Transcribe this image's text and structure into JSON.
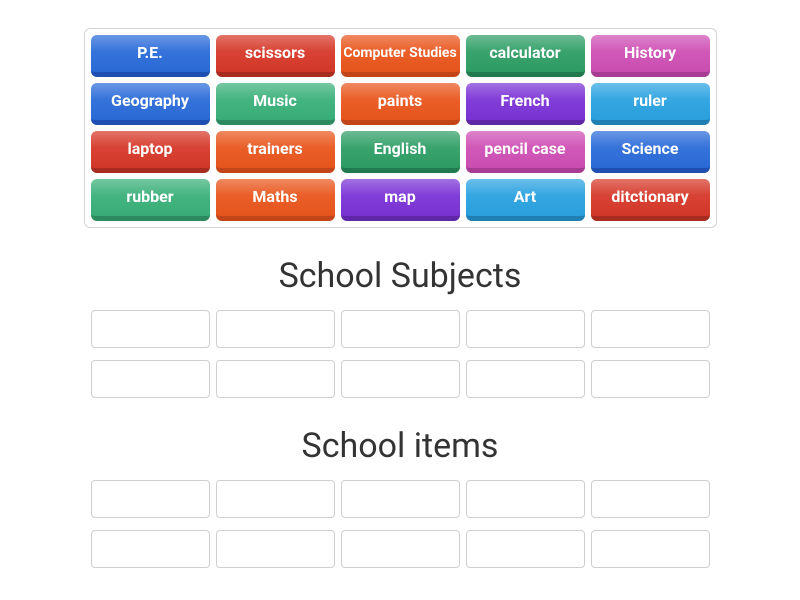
{
  "colors": {
    "blue": {
      "base": "#2b6bd9",
      "shadow": "#1f4fb0"
    },
    "red": {
      "base": "#d63829",
      "shadow": "#a82b20"
    },
    "orange": {
      "base": "#e9561d",
      "shadow": "#c24419"
    },
    "green": {
      "base": "#2f9e66",
      "shadow": "#217a4d"
    },
    "teal": {
      "base": "#3ab079",
      "shadow": "#2b8b5e"
    },
    "pink": {
      "base": "#ce4fb4",
      "shadow": "#a73d92"
    },
    "purple": {
      "base": "#7b33d6",
      "shadow": "#5f27a8"
    },
    "cyan": {
      "base": "#2aa2e0",
      "shadow": "#1f7fb2"
    }
  },
  "tiles": [
    [
      {
        "label": "P.E.",
        "color": "blue"
      },
      {
        "label": "scissors",
        "color": "red"
      },
      {
        "label": "Computer Studies",
        "color": "orange",
        "small": true
      },
      {
        "label": "calculator",
        "color": "green"
      },
      {
        "label": "History",
        "color": "pink"
      }
    ],
    [
      {
        "label": "Geography",
        "color": "blue"
      },
      {
        "label": "Music",
        "color": "teal"
      },
      {
        "label": "paints",
        "color": "orange"
      },
      {
        "label": "French",
        "color": "purple"
      },
      {
        "label": "ruler",
        "color": "cyan"
      }
    ],
    [
      {
        "label": "laptop",
        "color": "red"
      },
      {
        "label": "trainers",
        "color": "orange"
      },
      {
        "label": "English",
        "color": "green"
      },
      {
        "label": "pencil case",
        "color": "pink"
      },
      {
        "label": "Science",
        "color": "blue"
      }
    ],
    [
      {
        "label": "rubber",
        "color": "teal"
      },
      {
        "label": "Maths",
        "color": "orange"
      },
      {
        "label": "map",
        "color": "purple"
      },
      {
        "label": "Art",
        "color": "cyan"
      },
      {
        "label": "ditctionary",
        "color": "red"
      }
    ]
  ],
  "groups": [
    {
      "title": "School Subjects",
      "slot_rows": 2,
      "slots_per_row": 5
    },
    {
      "title": "School items",
      "slot_rows": 2,
      "slots_per_row": 5
    }
  ]
}
